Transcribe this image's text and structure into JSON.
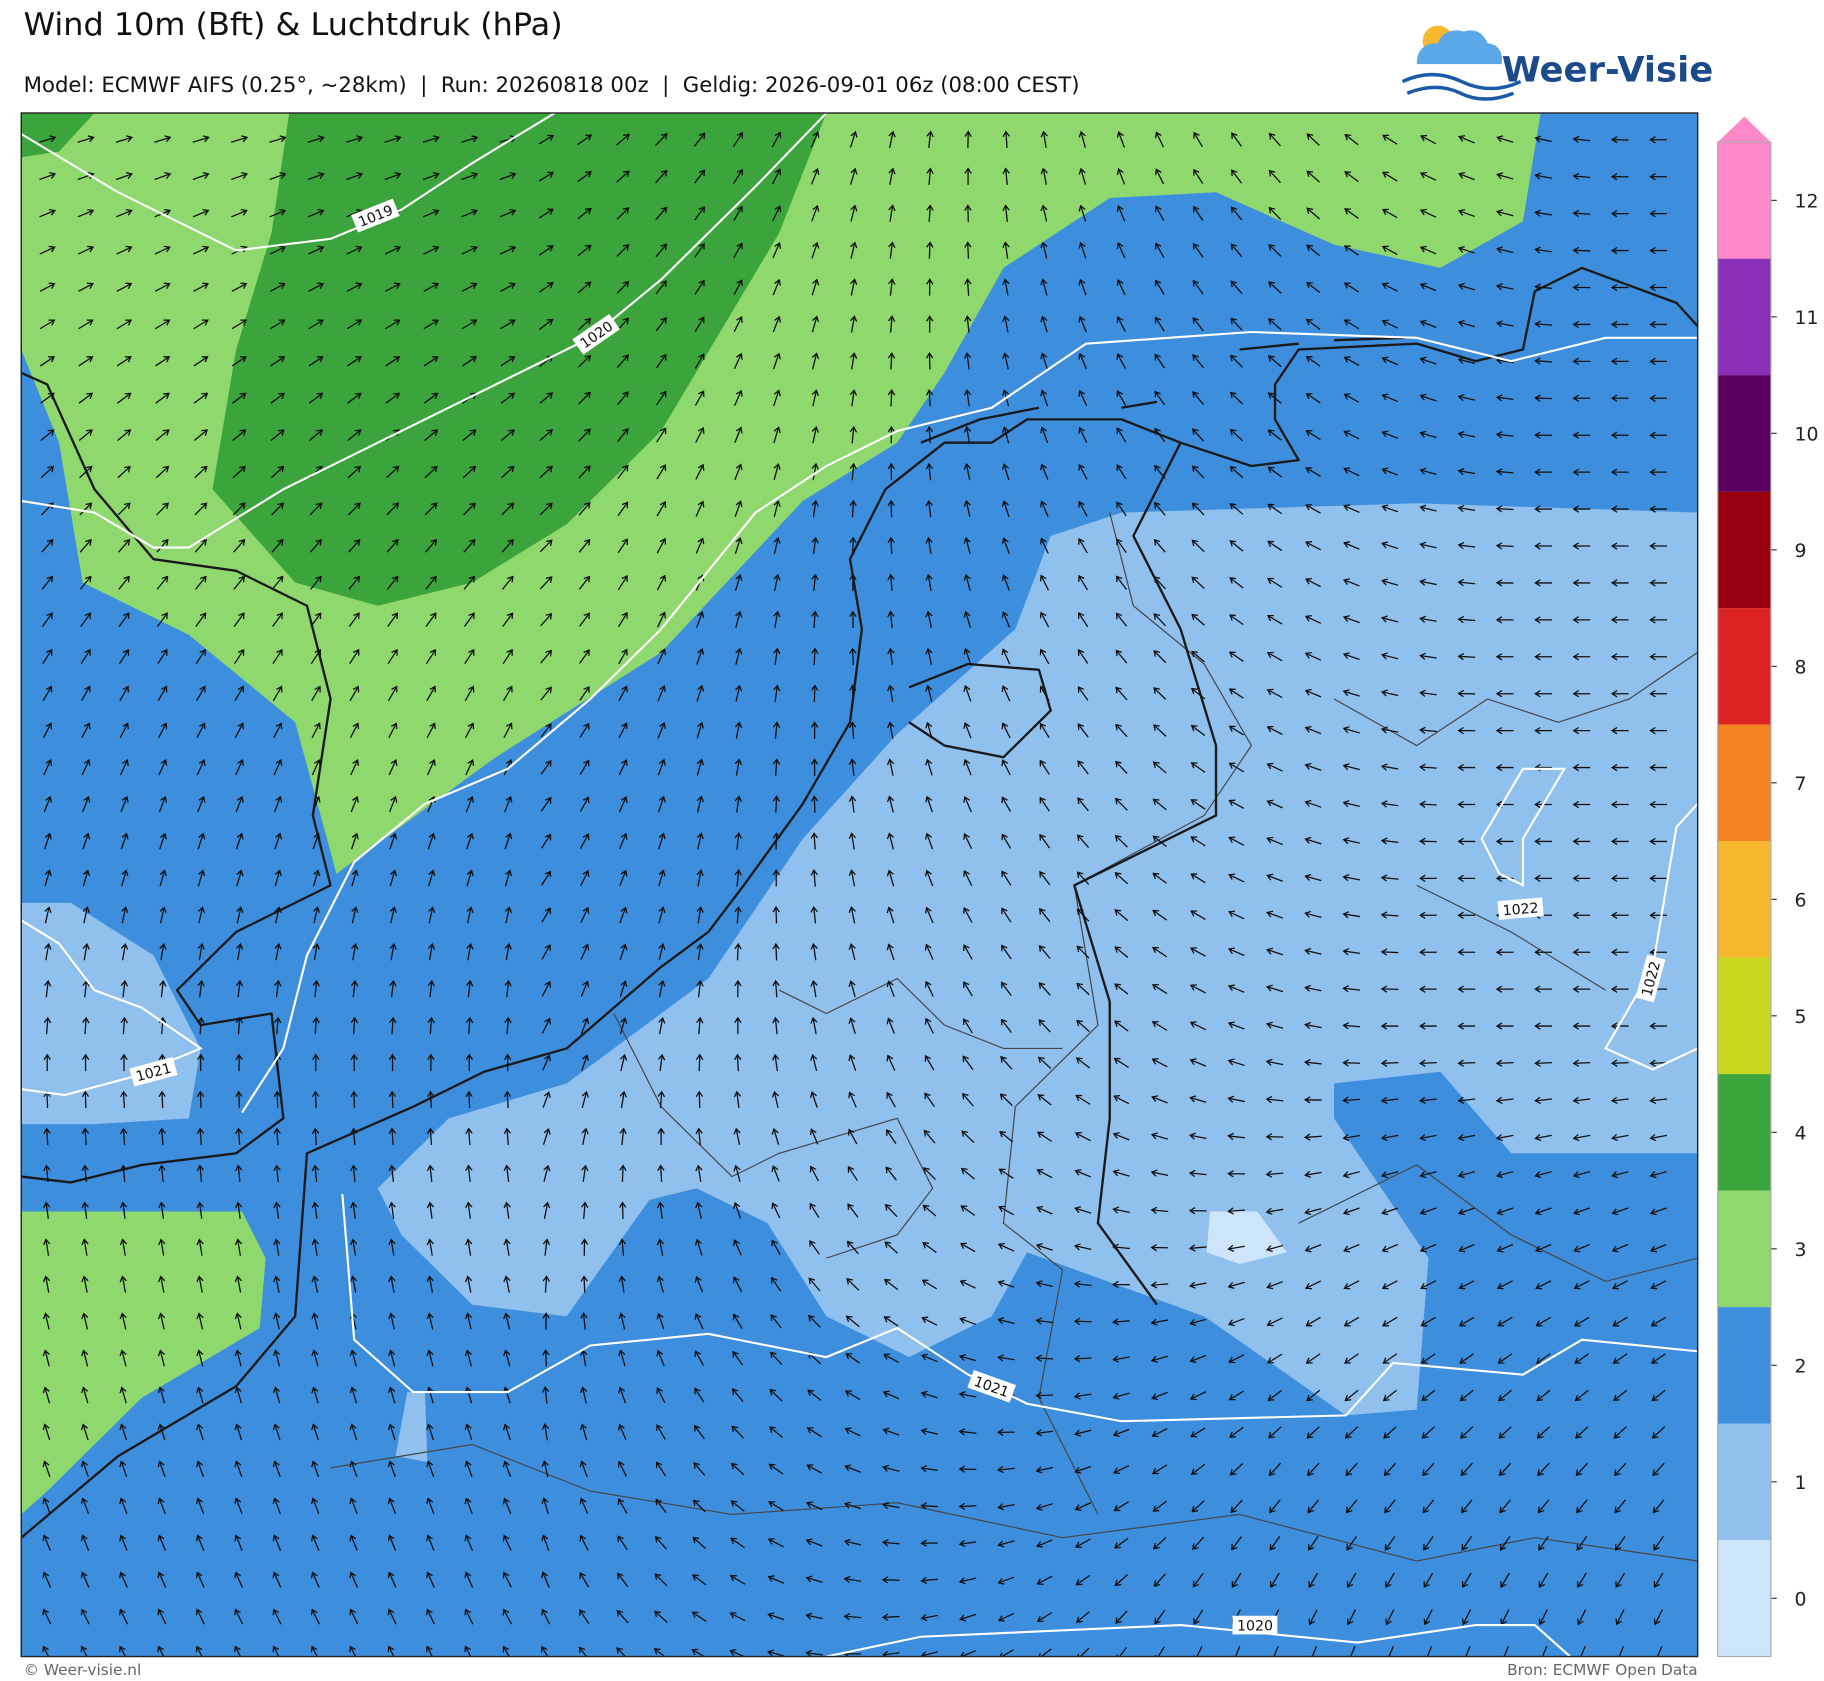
{
  "header": {
    "title": "Wind 10m (Bft) & Luchtdruk (hPa)",
    "subtitle": "Model: ECMWF AIFS (0.25°, ~28km)  |  Run: 20260818 00z  |  Geldig: 2026-09-01 06z (08:00 CEST)"
  },
  "logo": {
    "text": "Weer-Visie"
  },
  "colorbar": {
    "levels": [
      {
        "value": 0,
        "color": "#cce5fb"
      },
      {
        "value": 1,
        "color": "#90c0ee"
      },
      {
        "value": 2,
        "color": "#3e8ede"
      },
      {
        "value": 3,
        "color": "#8fd86e"
      },
      {
        "value": 4,
        "color": "#3ca43c"
      },
      {
        "value": 5,
        "color": "#c8d820"
      },
      {
        "value": 6,
        "color": "#f5b82e"
      },
      {
        "value": 7,
        "color": "#f58220"
      },
      {
        "value": 8,
        "color": "#dd2222"
      },
      {
        "value": 9,
        "color": "#9b0010"
      },
      {
        "value": 10,
        "color": "#5a0060"
      },
      {
        "value": 11,
        "color": "#8a30b8"
      },
      {
        "value": 12,
        "color": "#ff88c8"
      }
    ]
  },
  "isobar_labels": [
    1019,
    1020,
    1021,
    1021,
    1022,
    1022,
    1020
  ],
  "footer": {
    "left": "© Weer-visie.nl",
    "right": "Bron: ECMWF Open Data"
  }
}
